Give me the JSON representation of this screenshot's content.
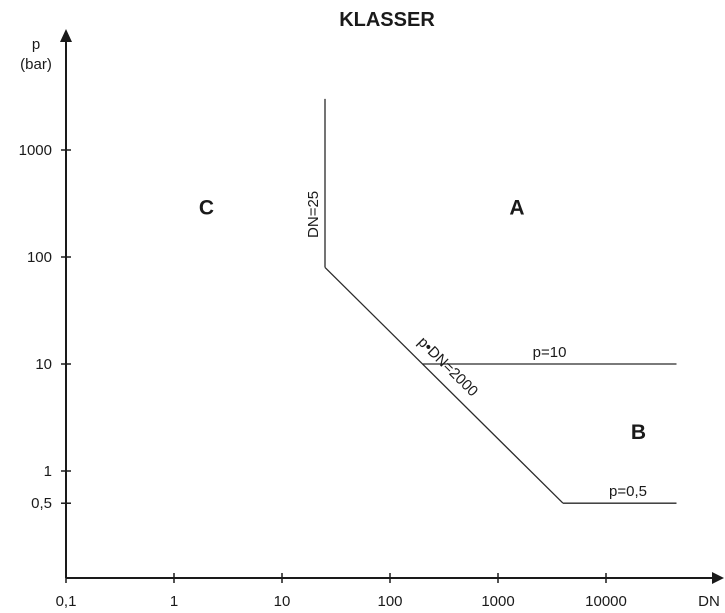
{
  "chart_data": {
    "type": "line",
    "title": "KLASSER",
    "xlabel": "DN",
    "ylabel_line1": "p",
    "ylabel_line2": "(bar)",
    "x_scale": "log",
    "y_scale": "log",
    "xlim": [
      0.1,
      50000
    ],
    "ylim": [
      0.022,
      8000
    ],
    "grid": false,
    "x_ticks": [
      {
        "value": 0.1,
        "label": "0,1"
      },
      {
        "value": 1,
        "label": "1"
      },
      {
        "value": 10,
        "label": "10"
      },
      {
        "value": 100,
        "label": "100"
      },
      {
        "value": 1000,
        "label": "1000"
      },
      {
        "value": 10000,
        "label": "10000"
      }
    ],
    "y_ticks": [
      {
        "value": 0.5,
        "label": "0,5"
      },
      {
        "value": 1,
        "label": "1"
      },
      {
        "value": 10,
        "label": "10"
      },
      {
        "value": 100,
        "label": "100"
      },
      {
        "value": 1000,
        "label": "1000"
      }
    ],
    "boundaries": [
      {
        "id": "dn25",
        "label": "DN=25",
        "points": [
          [
            25,
            80
          ],
          [
            25,
            3000
          ]
        ]
      },
      {
        "id": "pdn2000",
        "label": "p•DN=2000",
        "points": [
          [
            25,
            80
          ],
          [
            4000,
            0.5
          ]
        ]
      },
      {
        "id": "p10",
        "label": "p=10",
        "points": [
          [
            200,
            10
          ],
          [
            45000,
            10
          ]
        ]
      },
      {
        "id": "p05",
        "label": "p=0,5",
        "points": [
          [
            4000,
            0.5
          ],
          [
            45000,
            0.5
          ]
        ]
      }
    ],
    "regions": [
      {
        "label": "A",
        "x": 1500,
        "y": 250
      },
      {
        "label": "B",
        "x": 20000,
        "y": 2
      },
      {
        "label": "C",
        "x": 2,
        "y": 250
      }
    ]
  }
}
